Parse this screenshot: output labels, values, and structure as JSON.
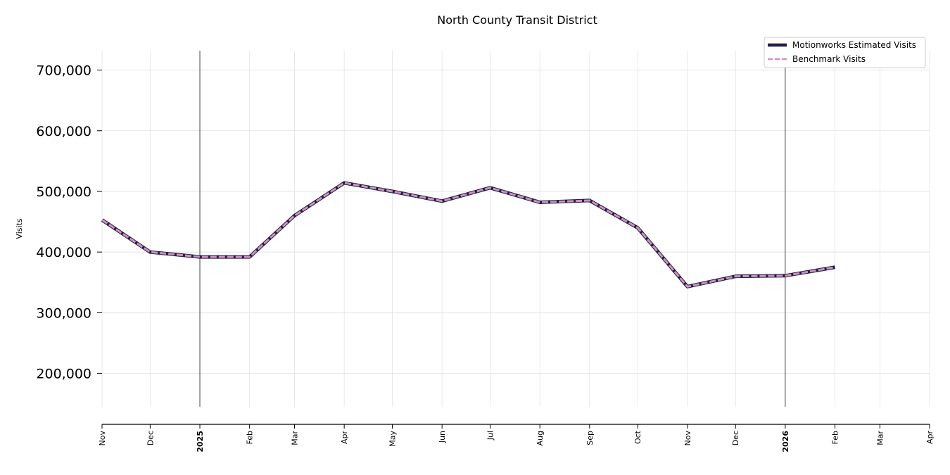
{
  "chart_data": {
    "type": "line",
    "title": "North County Transit District",
    "xlabel": "",
    "ylabel": "Visits",
    "ylim": [
      145000,
      732000
    ],
    "yticks": [
      200000,
      300000,
      400000,
      500000,
      600000,
      700000
    ],
    "ytick_labels": [
      "200,000",
      "300,000",
      "400,000",
      "500,000",
      "600,000",
      "700,000"
    ],
    "xlim": [
      "2024-11-01",
      "2026-04-01"
    ],
    "xticks": [
      {
        "date": "2024-11-01",
        "label": "Nov",
        "year_marker": false
      },
      {
        "date": "2024-12-01",
        "label": "Dec",
        "year_marker": false
      },
      {
        "date": "2025-01-01",
        "label": "2025",
        "year_marker": true
      },
      {
        "date": "2025-02-01",
        "label": "Feb",
        "year_marker": false
      },
      {
        "date": "2025-03-01",
        "label": "Mar",
        "year_marker": false
      },
      {
        "date": "2025-04-01",
        "label": "Apr",
        "year_marker": false
      },
      {
        "date": "2025-05-01",
        "label": "May",
        "year_marker": false
      },
      {
        "date": "2025-06-01",
        "label": "Jun",
        "year_marker": false
      },
      {
        "date": "2025-07-01",
        "label": "Jul",
        "year_marker": false
      },
      {
        "date": "2025-08-01",
        "label": "Aug",
        "year_marker": false
      },
      {
        "date": "2025-09-01",
        "label": "Sep",
        "year_marker": false
      },
      {
        "date": "2025-10-01",
        "label": "Oct",
        "year_marker": false
      },
      {
        "date": "2025-11-01",
        "label": "Nov",
        "year_marker": false
      },
      {
        "date": "2025-12-01",
        "label": "Dec",
        "year_marker": false
      },
      {
        "date": "2026-01-01",
        "label": "2026",
        "year_marker": true
      },
      {
        "date": "2026-02-01",
        "label": "Feb",
        "year_marker": false
      },
      {
        "date": "2026-03-01",
        "label": "Mar",
        "year_marker": false
      },
      {
        "date": "2026-04-01",
        "label": "Apr",
        "year_marker": false
      }
    ],
    "x": [
      "2024-11-01",
      "2024-12-01",
      "2025-01-01",
      "2025-02-01",
      "2025-03-01",
      "2025-04-01",
      "2025-05-01",
      "2025-06-01",
      "2025-07-01",
      "2025-08-01",
      "2025-09-01",
      "2025-10-01",
      "2025-11-01",
      "2025-12-01",
      "2026-01-01",
      "2026-02-01"
    ],
    "series": [
      {
        "name": "Motionworks Estimated Visits",
        "color": "#1c2147",
        "style": "solid",
        "values": [
          453000,
          400000,
          392000,
          392000,
          460000,
          514000,
          500000,
          484000,
          506000,
          482000,
          485000,
          440000,
          343000,
          360000,
          361000,
          375000
        ]
      },
      {
        "name": "Benchmark Visits",
        "color": "#d48fba",
        "style": "dashed",
        "values": [
          453000,
          400000,
          392000,
          392000,
          460000,
          514000,
          500000,
          484000,
          506000,
          482000,
          485000,
          440000,
          343000,
          360000,
          361000,
          375000
        ]
      }
    ],
    "grid": true,
    "legend_position": "top-right",
    "year_lines": [
      "2025-01-01",
      "2026-01-01"
    ]
  }
}
